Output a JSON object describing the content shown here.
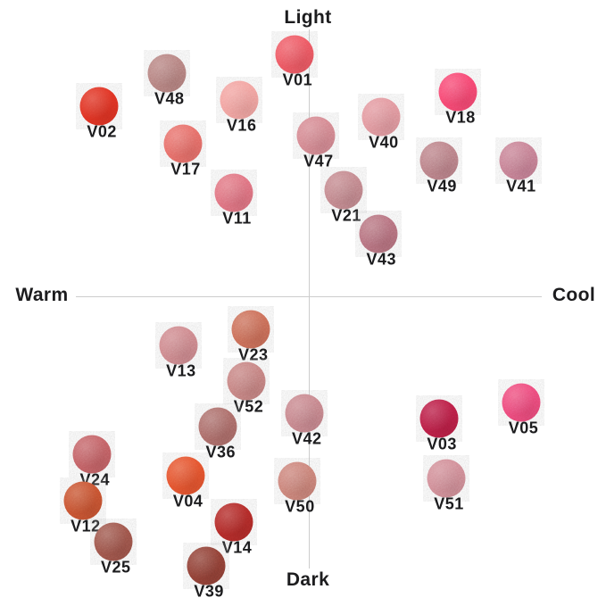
{
  "colors": {
    "background": "#ffffff",
    "axis_line": "#cccccc",
    "text": "#1c1c1e"
  },
  "chart_data": {
    "type": "scatter",
    "title": "",
    "x_axis": {
      "left_label": "Warm",
      "right_label": "Cool",
      "range": [
        -1,
        1
      ]
    },
    "y_axis": {
      "top_label": "Light",
      "bottom_label": "Dark",
      "range": [
        -1,
        1
      ]
    },
    "grid": false,
    "legend": false,
    "points": [
      {
        "label": "V01",
        "warm_cool": -0.06,
        "light_dark": 0.89,
        "color": "#ee5660"
      },
      {
        "label": "V48",
        "warm_cool": -0.61,
        "light_dark": 0.82,
        "color": "#b5807e"
      },
      {
        "label": "V18",
        "warm_cool": 0.64,
        "light_dark": 0.75,
        "color": "#f8466f"
      },
      {
        "label": "V02",
        "warm_cool": -0.9,
        "light_dark": 0.7,
        "color": "#e03122"
      },
      {
        "label": "V16",
        "warm_cool": -0.3,
        "light_dark": 0.72,
        "color": "#f2a09d"
      },
      {
        "label": "V40",
        "warm_cool": 0.31,
        "light_dark": 0.66,
        "color": "#e2959c"
      },
      {
        "label": "V47",
        "warm_cool": 0.03,
        "light_dark": 0.59,
        "color": "#d4858e"
      },
      {
        "label": "V17",
        "warm_cool": -0.54,
        "light_dark": 0.56,
        "color": "#e76b66"
      },
      {
        "label": "V49",
        "warm_cool": 0.56,
        "light_dark": 0.5,
        "color": "#ba7f86"
      },
      {
        "label": "V41",
        "warm_cool": 0.9,
        "light_dark": 0.5,
        "color": "#c67e92"
      },
      {
        "label": "V21",
        "warm_cool": 0.15,
        "light_dark": 0.39,
        "color": "#c2858b"
      },
      {
        "label": "V11",
        "warm_cool": -0.32,
        "light_dark": 0.38,
        "color": "#e0707e"
      },
      {
        "label": "V43",
        "warm_cool": 0.3,
        "light_dark": 0.23,
        "color": "#b56f7c"
      },
      {
        "label": "V23",
        "warm_cool": -0.25,
        "light_dark": -0.12,
        "color": "#ca6b56"
      },
      {
        "label": "V13",
        "warm_cool": -0.56,
        "light_dark": -0.18,
        "color": "#cd858a"
      },
      {
        "label": "V52",
        "warm_cool": -0.27,
        "light_dark": -0.31,
        "color": "#c5807f"
      },
      {
        "label": "V05",
        "warm_cool": 0.91,
        "light_dark": -0.39,
        "color": "#ee4979"
      },
      {
        "label": "V42",
        "warm_cool": -0.02,
        "light_dark": -0.43,
        "color": "#c6838a"
      },
      {
        "label": "V03",
        "warm_cool": 0.56,
        "light_dark": -0.45,
        "color": "#b91e44"
      },
      {
        "label": "V36",
        "warm_cool": -0.39,
        "light_dark": -0.48,
        "color": "#aa6a67"
      },
      {
        "label": "V24",
        "warm_cool": -0.93,
        "light_dark": -0.58,
        "color": "#c25f63"
      },
      {
        "label": "V04",
        "warm_cool": -0.53,
        "light_dark": -0.66,
        "color": "#e5512d"
      },
      {
        "label": "V51",
        "warm_cool": 0.59,
        "light_dark": -0.67,
        "color": "#d08a94"
      },
      {
        "label": "V50",
        "warm_cool": -0.05,
        "light_dark": -0.68,
        "color": "#ca8076"
      },
      {
        "label": "V12",
        "warm_cool": -0.97,
        "light_dark": -0.75,
        "color": "#c75130"
      },
      {
        "label": "V14",
        "warm_cool": -0.32,
        "light_dark": -0.83,
        "color": "#b12a28"
      },
      {
        "label": "V25",
        "warm_cool": -0.84,
        "light_dark": -0.9,
        "color": "#9c5349"
      },
      {
        "label": "V39",
        "warm_cool": -0.44,
        "light_dark": -0.99,
        "color": "#8e3f35"
      }
    ]
  }
}
